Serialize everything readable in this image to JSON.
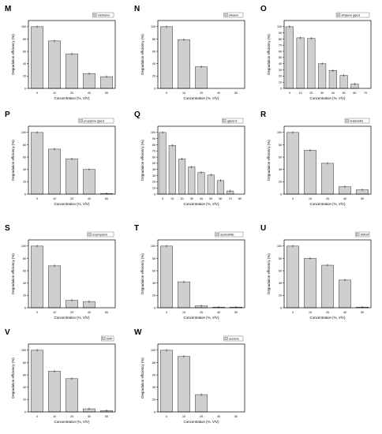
{
  "colors": {
    "bar_fill": "#cfcfcf",
    "bar_stroke": "#555555",
    "axis": "#000000",
    "legend_fill": "#cfcfcf"
  },
  "chart_data": [
    {
      "panel": "M",
      "type": "bar",
      "legend": "methanol",
      "categories": [
        "0",
        "10",
        "20",
        "40",
        "50"
      ],
      "values": [
        100,
        77,
        56,
        24,
        19
      ],
      "ylim": [
        0,
        110
      ],
      "yticks": [
        0,
        20,
        40,
        60,
        80,
        100
      ],
      "xlabel": "Concentration (%, V/V)",
      "ylabel": "Degradation efficiency (%)"
    },
    {
      "panel": "N",
      "type": "bar",
      "legend": "ethanol",
      "categories": [
        "0",
        "10",
        "20",
        "40",
        "50"
      ],
      "values": [
        100,
        79,
        35,
        0,
        0
      ],
      "ylim": [
        0,
        110
      ],
      "yticks": [
        0,
        20,
        40,
        60,
        80,
        100
      ],
      "xlabel": "Concentration (%, V/V)",
      "ylabel": "Degradation efficiency (%)"
    },
    {
      "panel": "O",
      "type": "bar",
      "legend": "ethylene glycol",
      "categories": [
        "0",
        "10",
        "20",
        "30",
        "40",
        "50",
        "60",
        "70"
      ],
      "values": [
        100,
        82,
        81,
        40,
        29,
        21,
        7,
        0
      ],
      "ylim": [
        0,
        110
      ],
      "yticks": [
        0,
        10,
        20,
        30,
        40,
        50,
        60,
        70,
        80,
        90,
        100
      ],
      "xlabel": "Concentration (%, V/V)",
      "ylabel": "Degradation efficiency (%)"
    },
    {
      "panel": "P",
      "type": "bar",
      "legend": "propylene glycol",
      "categories": [
        "0",
        "10",
        "20",
        "40",
        "50"
      ],
      "values": [
        100,
        73,
        57,
        40,
        1
      ],
      "ylim": [
        0,
        110
      ],
      "yticks": [
        0,
        20,
        40,
        60,
        80,
        100
      ],
      "xlabel": "Concentration (%, V/V)",
      "ylabel": "Degradation efficiency (%)"
    },
    {
      "panel": "Q",
      "type": "bar",
      "legend": "glycerol",
      "categories": [
        "0",
        "10",
        "20",
        "30",
        "40",
        "50",
        "60",
        "70",
        "80"
      ],
      "values": [
        100,
        79,
        57,
        44,
        35,
        31,
        22,
        5,
        0
      ],
      "ylim": [
        0,
        110
      ],
      "yticks": [
        0,
        10,
        20,
        30,
        40,
        50,
        60,
        70,
        80,
        90,
        100
      ],
      "xlabel": "Concentration (%, V/V)",
      "ylabel": "Degradation efficiency (%)"
    },
    {
      "panel": "R",
      "type": "bar",
      "legend": "butanediol",
      "categories": [
        "0",
        "10",
        "20",
        "40",
        "50"
      ],
      "values": [
        100,
        71,
        50,
        12,
        7
      ],
      "ylim": [
        0,
        110
      ],
      "yticks": [
        0,
        20,
        40,
        60,
        80,
        100
      ],
      "xlabel": "Concentration (%, V/V)",
      "ylabel": "Degradation efficiency (%)"
    },
    {
      "panel": "S",
      "type": "bar",
      "legend": "isopropanol",
      "categories": [
        "0",
        "10",
        "20",
        "40",
        "50"
      ],
      "values": [
        100,
        68,
        12,
        10,
        0
      ],
      "ylim": [
        0,
        110
      ],
      "yticks": [
        0,
        20,
        40,
        60,
        80,
        100
      ],
      "xlabel": "Concentration (%, V/V)",
      "ylabel": "Degradation efficiency (%)"
    },
    {
      "panel": "T",
      "type": "bar",
      "legend": "acetonitrile",
      "categories": [
        "0",
        "10",
        "20",
        "40",
        "50"
      ],
      "values": [
        100,
        42,
        3,
        1,
        1
      ],
      "ylim": [
        0,
        110
      ],
      "yticks": [
        0,
        20,
        40,
        60,
        80,
        100
      ],
      "xlabel": "Concentration (%, V/V)",
      "ylabel": "Degradation efficiency (%)"
    },
    {
      "panel": "U",
      "type": "bar",
      "legend": "DMSO",
      "categories": [
        "0",
        "10",
        "20",
        "40",
        "50"
      ],
      "values": [
        100,
        80,
        69,
        45,
        1
      ],
      "ylim": [
        0,
        110
      ],
      "yticks": [
        0,
        20,
        40,
        60,
        80,
        100
      ],
      "xlabel": "Concentration (%, V/V)",
      "ylabel": "Degradation efficiency (%)"
    },
    {
      "panel": "V",
      "type": "bar",
      "legend": "DMF",
      "categories": [
        "0",
        "10",
        "20",
        "40",
        "50"
      ],
      "values": [
        100,
        66,
        54,
        5,
        2
      ],
      "ylim": [
        0,
        110
      ],
      "yticks": [
        0,
        20,
        40,
        60,
        80,
        100
      ],
      "xlabel": "Concentration (%, V/V)",
      "ylabel": "Degradation efficiency (%)"
    },
    {
      "panel": "W",
      "type": "bar",
      "legend": "acetone",
      "categories": [
        "0",
        "10",
        "20",
        "40",
        "50"
      ],
      "values": [
        100,
        90,
        28,
        0,
        0
      ],
      "ylim": [
        0,
        110
      ],
      "yticks": [
        0,
        20,
        40,
        60,
        80,
        100
      ],
      "xlabel": "Concentration (%, V/V)",
      "ylabel": "Degradation efficiency (%)"
    }
  ]
}
